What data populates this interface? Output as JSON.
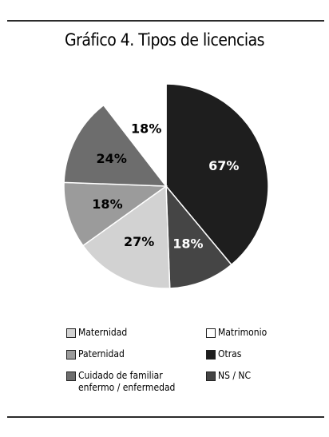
{
  "chart_data": {
    "type": "pie",
    "title": "Gráfico 4. Tipos de licencias",
    "slices": [
      {
        "label": "Otras",
        "value": 67,
        "value_label": "67%",
        "color": "#1e1e1e",
        "label_color": "#ffffff"
      },
      {
        "label": "NS / NC",
        "value": 18,
        "value_label": "18%",
        "color": "#454545",
        "label_color": "#ffffff"
      },
      {
        "label": "Maternidad",
        "value": 27,
        "value_label": "27%",
        "color": "#d2d2d2",
        "label_color": "#000000"
      },
      {
        "label": "Paternidad",
        "value": 18,
        "value_label": "18%",
        "color": "#9b9b9b",
        "label_color": "#000000"
      },
      {
        "label": "Cuidado de familiar enfermo / enfermedad",
        "value": 24,
        "value_label": "24%",
        "color": "#6d6d6d",
        "label_color": "#000000"
      },
      {
        "label": "Matrimonio",
        "value": 18,
        "value_label": "18%",
        "color": "#ffffff",
        "label_color": "#000000"
      }
    ],
    "legend": [
      {
        "name": "Maternidad",
        "color": "#d2d2d2"
      },
      {
        "name": "Matrimonio",
        "color": "#ffffff"
      },
      {
        "name": "Paternidad",
        "color": "#9b9b9b"
      },
      {
        "name": "Otras",
        "color": "#1e1e1e"
      },
      {
        "name": "Cuidado de familiar\nenfermo / enfermedad",
        "color": "#6d6d6d"
      },
      {
        "name": "NS / NC",
        "color": "#454545"
      }
    ],
    "legend_position": "bottom"
  }
}
